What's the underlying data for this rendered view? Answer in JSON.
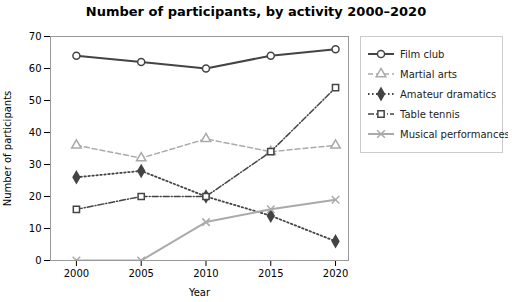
{
  "chart_data": {
    "type": "line",
    "title": "Number of participants, by activity 2000–2020",
    "xlabel": "Year",
    "ylabel": "Number of participants",
    "x": [
      2000,
      2005,
      2010,
      2015,
      2020
    ],
    "series": [
      {
        "name": "Film club",
        "color": "#444444",
        "values": [
          64,
          62,
          60,
          64,
          66
        ],
        "marker": "circle",
        "line_style": "solid"
      },
      {
        "name": "Martial arts",
        "color": "#aaaaaa",
        "values": [
          36,
          32,
          38,
          34,
          36
        ],
        "marker": "triangle",
        "line_style": "dashed"
      },
      {
        "name": "Amateur dramatics",
        "color": "#444444",
        "values": [
          26,
          28,
          20,
          14,
          6
        ],
        "marker": "diamond",
        "line_style": "dotted"
      },
      {
        "name": "Table tennis",
        "color": "#444444",
        "values": [
          16,
          20,
          20,
          34,
          54
        ],
        "marker": "square",
        "line_style": "dashdot"
      },
      {
        "name": "Musical performances",
        "color": "#aaaaaa",
        "values": [
          0,
          0,
          12,
          16,
          19
        ],
        "marker": "x",
        "line_style": "solid"
      }
    ],
    "xlim": [
      1998,
      2021
    ],
    "xticks": [
      2000,
      2005,
      2010,
      2015,
      2020
    ],
    "ylim": [
      0,
      70
    ],
    "yticks": [
      0,
      10,
      20,
      30,
      40,
      50,
      60,
      70
    ],
    "grid": false,
    "legend": "right"
  }
}
